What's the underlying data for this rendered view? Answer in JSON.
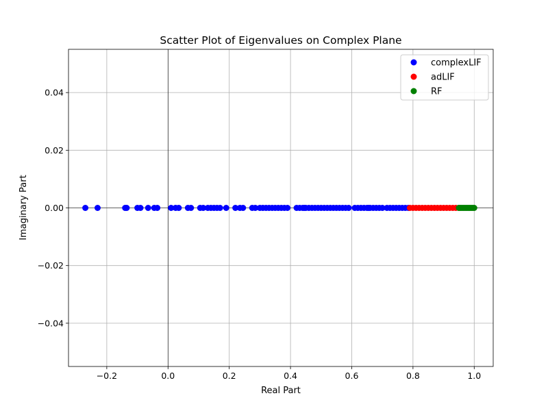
{
  "chart_data": {
    "type": "scatter",
    "title": "Scatter Plot of Eigenvalues on Complex Plane",
    "xlabel": "Real Part",
    "ylabel": "Imaginary Part",
    "xlim": [
      -0.325,
      1.062
    ],
    "ylim": [
      -0.055,
      0.055
    ],
    "xticks": [
      -0.2,
      0.0,
      0.2,
      0.4,
      0.6,
      0.8,
      1.0
    ],
    "xtick_labels": [
      "−0.2",
      "0.0",
      "0.2",
      "0.4",
      "0.6",
      "0.8",
      "1.0"
    ],
    "yticks": [
      -0.04,
      -0.02,
      0.0,
      0.02,
      0.04
    ],
    "ytick_labels": [
      "−0.04",
      "−0.02",
      "0.00",
      "0.02",
      "0.04"
    ],
    "grid": true,
    "legend_position": "top-right",
    "series": [
      {
        "name": "complexLIF",
        "color": "#0000ff",
        "x": [
          -0.27,
          -0.23,
          -0.14,
          -0.135,
          -0.1,
          -0.09,
          -0.065,
          -0.045,
          -0.035,
          0.01,
          0.025,
          0.035,
          0.065,
          0.075,
          0.105,
          0.115,
          0.13,
          0.14,
          0.15,
          0.16,
          0.17,
          0.19,
          0.22,
          0.235,
          0.245,
          0.275,
          0.285,
          0.3,
          0.31,
          0.32,
          0.33,
          0.34,
          0.35,
          0.36,
          0.37,
          0.38,
          0.39,
          0.42,
          0.43,
          0.44,
          0.445,
          0.45,
          0.46,
          0.47,
          0.48,
          0.49,
          0.5,
          0.51,
          0.52,
          0.53,
          0.54,
          0.55,
          0.56,
          0.57,
          0.58,
          0.59,
          0.61,
          0.62,
          0.63,
          0.64,
          0.65,
          0.655,
          0.66,
          0.67,
          0.68,
          0.69,
          0.7,
          0.715,
          0.725,
          0.735,
          0.745,
          0.755,
          0.765,
          0.775,
          0.785
        ],
        "y": [
          0,
          0,
          0,
          0,
          0,
          0,
          0,
          0,
          0,
          0,
          0,
          0,
          0,
          0,
          0,
          0,
          0,
          0,
          0,
          0,
          0,
          0,
          0,
          0,
          0,
          0,
          0,
          0,
          0,
          0,
          0,
          0,
          0,
          0,
          0,
          0,
          0,
          0,
          0,
          0,
          0,
          0,
          0,
          0,
          0,
          0,
          0,
          0,
          0,
          0,
          0,
          0,
          0,
          0,
          0,
          0,
          0,
          0,
          0,
          0,
          0,
          0,
          0,
          0,
          0,
          0,
          0,
          0,
          0,
          0,
          0,
          0,
          0,
          0,
          0
        ]
      },
      {
        "name": "adLIF",
        "color": "#ff0000",
        "x": [
          0.79,
          0.8,
          0.81,
          0.82,
          0.83,
          0.84,
          0.85,
          0.86,
          0.87,
          0.88,
          0.89,
          0.9,
          0.91,
          0.92,
          0.93,
          0.94,
          0.95
        ],
        "y": [
          0,
          0,
          0,
          0,
          0,
          0,
          0,
          0,
          0,
          0,
          0,
          0,
          0,
          0,
          0,
          0,
          0
        ]
      },
      {
        "name": "RF",
        "color": "#008000",
        "x": [
          0.95,
          0.955,
          0.96,
          0.965,
          0.97,
          0.975,
          0.98,
          0.985,
          0.99,
          0.995,
          1.0
        ],
        "y": [
          0,
          0,
          0,
          0,
          0,
          0,
          0,
          0,
          0,
          0,
          0
        ]
      }
    ]
  }
}
